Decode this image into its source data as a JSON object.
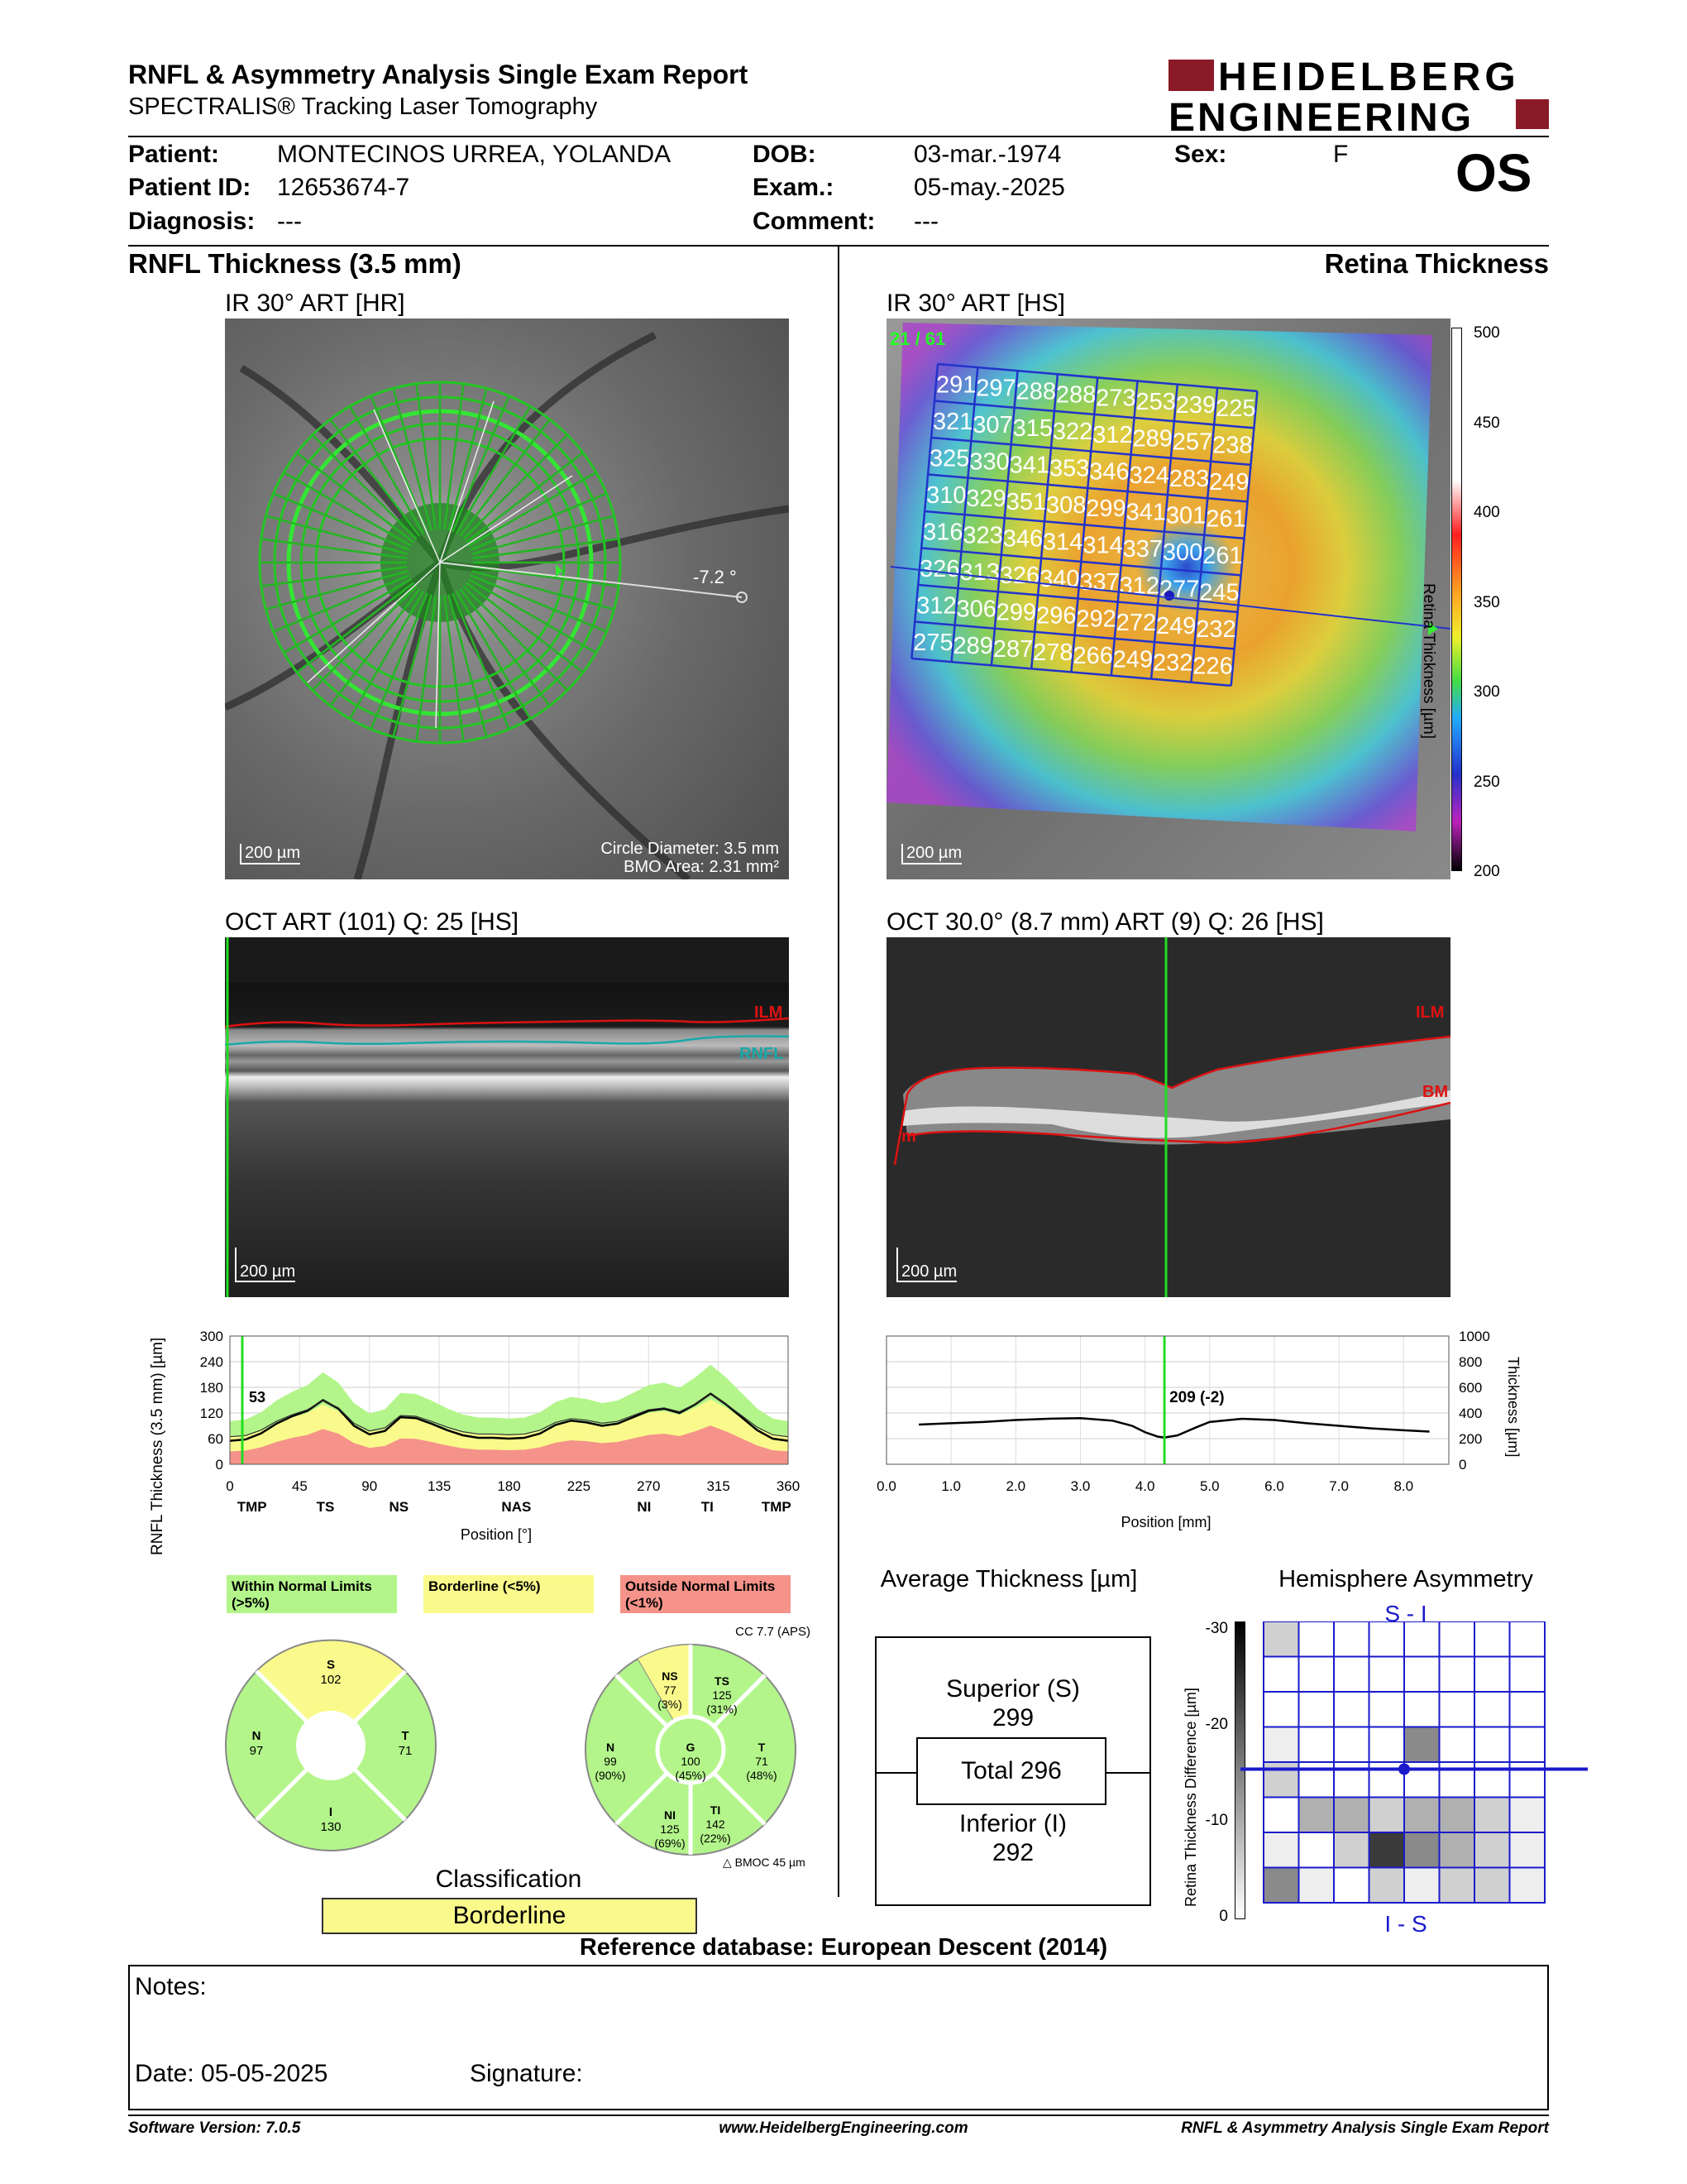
{
  "header": {
    "title": "RNFL & Asymmetry Analysis Single Exam Report",
    "subtitle": "SPECTRALIS® Tracking Laser Tomography",
    "logo_line1": "HEIDELBERG",
    "logo_line2": "ENGINEERING",
    "eye": "OS"
  },
  "patient": {
    "patient_label": "Patient:",
    "patient_value": "MONTECINOS URREA, YOLANDA",
    "id_label": "Patient ID:",
    "id_value": "12653674-7",
    "diagnosis_label": "Diagnosis:",
    "diagnosis_value": "---",
    "dob_label": "DOB:",
    "dob_value": "03-mar.-1974",
    "exam_label": "Exam.:",
    "exam_value": "05-may.-2025",
    "comment_label": "Comment:",
    "comment_value": "---",
    "sex_label": "Sex:",
    "sex_value": "F"
  },
  "sections": {
    "left_title": "RNFL Thickness (3.5 mm)",
    "right_title": "Retina Thickness"
  },
  "left_image": {
    "title": "IR 30° ART [HR]",
    "scale": "200 µm",
    "angle": "-7.2 °",
    "circle_diameter": "Circle Diameter: 3.5 mm",
    "bmo_area": "BMO Area: 2.31 mm²"
  },
  "right_image": {
    "title": "IR 30° ART [HS]",
    "scale": "200 µm",
    "frame": "21 / 61",
    "grid": [
      [
        291,
        297,
        288,
        288,
        273,
        253,
        239,
        225
      ],
      [
        321,
        307,
        315,
        322,
        312,
        289,
        257,
        238
      ],
      [
        325,
        330,
        341,
        353,
        346,
        324,
        283,
        249
      ],
      [
        310,
        329,
        351,
        308,
        299,
        341,
        301,
        261
      ],
      [
        316,
        323,
        346,
        314,
        314,
        337,
        300,
        261
      ],
      [
        326,
        313,
        326,
        340,
        337,
        312,
        277,
        245
      ],
      [
        312,
        306,
        299,
        296,
        292,
        272,
        249,
        232
      ],
      [
        275,
        289,
        287,
        278,
        266,
        249,
        232,
        226
      ]
    ],
    "colorbar_ticks": [
      "500",
      "450",
      "400",
      "350",
      "300",
      "250",
      "200"
    ],
    "colorbar_label": "Retina Thickness [µm]"
  },
  "left_oct": {
    "title": "OCT ART (101) Q: 25 [HS]",
    "scale": "200 µm",
    "label_ilm": "ILM",
    "label_rnfl": "RNFL"
  },
  "right_oct": {
    "title": "OCT 30.0° (8.7 mm) ART (9) Q: 26 [HS]",
    "scale": "200 µm",
    "label_ilm": "ILM",
    "label_bm": "BM",
    "label_left": "m"
  },
  "rnfl_chart": {
    "chart_data": {
      "type": "line",
      "ylabel": "RNFL Thickness (3.5 mm) [µm]",
      "xlabel": "Position [°]",
      "ylim": [
        0,
        300
      ],
      "xlim": [
        0,
        360
      ],
      "yticks": [
        "0",
        "60",
        "120",
        "180",
        "240",
        "300"
      ],
      "xticks": [
        "0",
        "45",
        "90",
        "135",
        "180",
        "225",
        "270",
        "315",
        "360"
      ],
      "sector_labels": [
        "TMP",
        "TS",
        "NS",
        "NAS",
        "NI",
        "TI",
        "TMP"
      ],
      "marker_value": "53",
      "marker_x": 8,
      "x": [
        0,
        10,
        20,
        30,
        40,
        50,
        60,
        70,
        80,
        90,
        100,
        110,
        120,
        130,
        140,
        150,
        160,
        170,
        180,
        190,
        200,
        210,
        220,
        230,
        240,
        250,
        260,
        270,
        280,
        290,
        300,
        310,
        320,
        330,
        340,
        350,
        360
      ],
      "values": [
        55,
        58,
        72,
        95,
        112,
        125,
        150,
        130,
        90,
        70,
        78,
        110,
        108,
        95,
        80,
        68,
        62,
        62,
        60,
        62,
        72,
        92,
        102,
        98,
        90,
        95,
        110,
        125,
        130,
        120,
        140,
        165,
        140,
        110,
        80,
        60,
        55
      ]
    }
  },
  "retina_chart": {
    "chart_data": {
      "type": "line",
      "ylabel": "Thickness [µm]",
      "xlabel": "Position [mm]",
      "ylim": [
        0,
        1000
      ],
      "xlim": [
        0,
        8.7
      ],
      "yticks": [
        "0",
        "200",
        "400",
        "600",
        "800",
        "1000"
      ],
      "xticks": [
        "0.0",
        "1.0",
        "2.0",
        "3.0",
        "4.0",
        "5.0",
        "6.0",
        "7.0",
        "8.0"
      ],
      "marker_label": "209 (-2)",
      "marker_x": 4.3,
      "x": [
        0.5,
        1.0,
        1.5,
        2.0,
        2.5,
        3.0,
        3.5,
        3.8,
        4.0,
        4.2,
        4.3,
        4.5,
        4.8,
        5.0,
        5.5,
        6.0,
        6.5,
        7.0,
        7.5,
        8.0,
        8.4
      ],
      "values": [
        310,
        320,
        330,
        345,
        355,
        360,
        340,
        300,
        250,
        215,
        209,
        225,
        290,
        330,
        355,
        345,
        320,
        300,
        280,
        265,
        255
      ]
    }
  },
  "legend": {
    "within": "Within Normal Limits (>5%)",
    "borderline": "Borderline (<5%)",
    "outside": "Outside Normal Limits (<1%)",
    "colors": {
      "within": "#b3f58a",
      "borderline": "#fafa8c",
      "outside": "#f5938a"
    }
  },
  "sector_4": {
    "S": "S",
    "S_val": "102",
    "N": "N",
    "N_val": "97",
    "T": "T",
    "T_val": "71",
    "I": "I",
    "I_val": "130"
  },
  "sector_6": {
    "cc": "CC 7.7 (APS)",
    "NS": "NS",
    "NS_val": "77",
    "NS_pct": "(3%)",
    "TS": "TS",
    "TS_val": "125",
    "TS_pct": "(31%)",
    "N": "N",
    "N_val": "99",
    "N_pct": "(90%)",
    "G": "G",
    "G_val": "100",
    "G_pct": "(45%)",
    "T": "T",
    "T_val": "71",
    "T_pct": "(48%)",
    "NI": "NI",
    "NI_val": "125",
    "NI_pct": "(69%)",
    "TI": "TI",
    "TI_val": "142",
    "TI_pct": "(22%)",
    "bmo": "BMOC 45 µm"
  },
  "classification": {
    "label": "Classification",
    "value": "Borderline"
  },
  "average": {
    "title": "Average Thickness [µm]",
    "superior_label": "Superior (S)",
    "superior_val": "299",
    "total": "Total 296",
    "inferior_label": "Inferior (I)",
    "inferior_val": "292"
  },
  "asymmetry": {
    "title": "Hemisphere Asymmetry",
    "top": "S - I",
    "bottom": "I - S",
    "ylabel": "Retina Thickness Difference [µm]",
    "ticks": [
      "-30",
      "-20",
      "-10",
      "0"
    ],
    "cells": [
      [
        2,
        0,
        0,
        0,
        0,
        0,
        0,
        0
      ],
      [
        0,
        0,
        0,
        0,
        0,
        0,
        0,
        0
      ],
      [
        0,
        0,
        0,
        0,
        0,
        0,
        0,
        0
      ],
      [
        1,
        0,
        0,
        0,
        4,
        0,
        0,
        0
      ],
      [
        2,
        0,
        0,
        0,
        0,
        0,
        0,
        0
      ],
      [
        0,
        3,
        3,
        2,
        3,
        3,
        2,
        1
      ],
      [
        1,
        0,
        2,
        6,
        4,
        3,
        2,
        1
      ],
      [
        4,
        1,
        0,
        2,
        1,
        2,
        2,
        1
      ]
    ]
  },
  "reference": "Reference database: European Descent (2014)",
  "notes": {
    "notes_label": "Notes:",
    "date_label": "Date: 05-05-2025",
    "signature_label": "Signature:"
  },
  "footer": {
    "version": "Software Version: 7.0.5",
    "url": "www.HeidelbergEngineering.com",
    "report": "RNFL & Asymmetry Analysis Single Exam Report"
  }
}
